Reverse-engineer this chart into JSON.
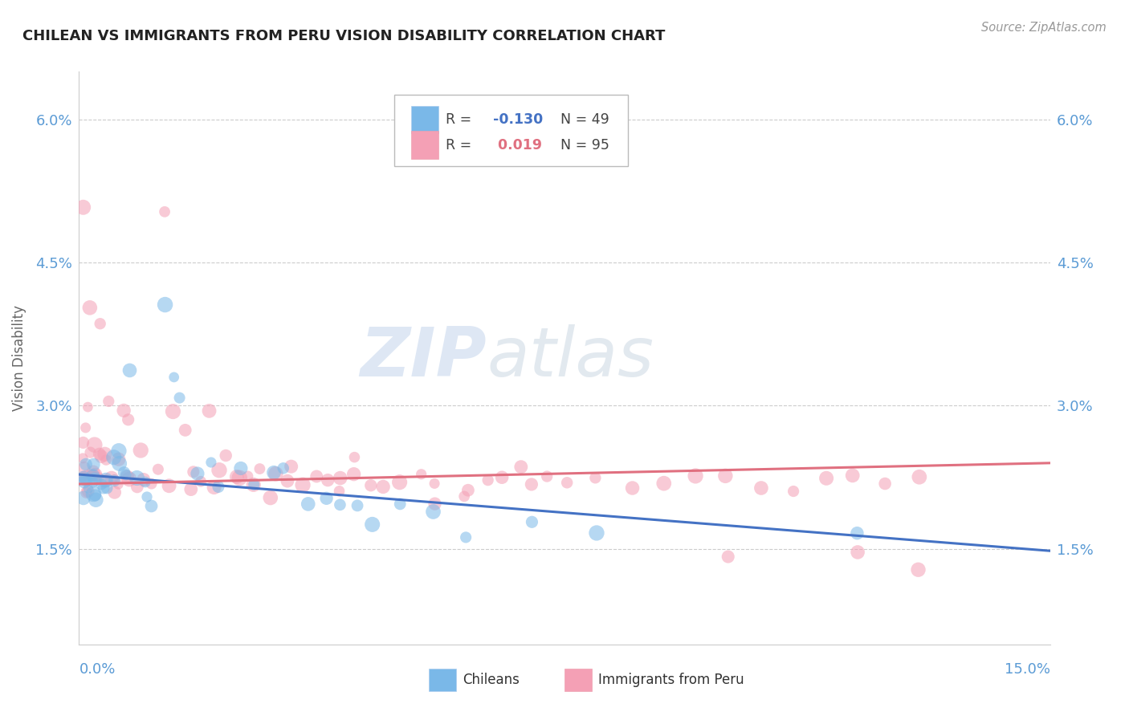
{
  "title": "CHILEAN VS IMMIGRANTS FROM PERU VISION DISABILITY CORRELATION CHART",
  "source": "Source: ZipAtlas.com",
  "ylabel": "Vision Disability",
  "xmin": 0.0,
  "xmax": 0.15,
  "ymin": 0.005,
  "ymax": 0.065,
  "yticks": [
    0.015,
    0.03,
    0.045,
    0.06
  ],
  "ytick_labels": [
    "1.5%",
    "3.0%",
    "4.5%",
    "6.0%"
  ],
  "color_chilean": "#7ab8e8",
  "color_peru": "#f4a0b5",
  "color_line_chilean": "#4472c4",
  "color_line_peru": "#e07080",
  "color_axis_label": "#5b9bd5",
  "watermark_zip": "ZIP",
  "watermark_atlas": "atlas",
  "chilean_x": [
    0.001,
    0.001,
    0.001,
    0.001,
    0.001,
    0.001,
    0.002,
    0.002,
    0.002,
    0.002,
    0.002,
    0.003,
    0.003,
    0.003,
    0.004,
    0.004,
    0.004,
    0.005,
    0.005,
    0.006,
    0.006,
    0.007,
    0.007,
    0.008,
    0.009,
    0.01,
    0.01,
    0.011,
    0.013,
    0.015,
    0.016,
    0.018,
    0.02,
    0.022,
    0.025,
    0.027,
    0.03,
    0.032,
    0.035,
    0.038,
    0.04,
    0.043,
    0.045,
    0.05,
    0.055,
    0.06,
    0.07,
    0.08,
    0.12
  ],
  "chilean_y": [
    0.022,
    0.022,
    0.021,
    0.022,
    0.023,
    0.022,
    0.023,
    0.022,
    0.021,
    0.022,
    0.023,
    0.022,
    0.021,
    0.02,
    0.022,
    0.023,
    0.021,
    0.024,
    0.022,
    0.023,
    0.025,
    0.022,
    0.023,
    0.034,
    0.022,
    0.022,
    0.021,
    0.02,
    0.04,
    0.033,
    0.03,
    0.022,
    0.024,
    0.022,
    0.023,
    0.022,
    0.023,
    0.024,
    0.02,
    0.02,
    0.02,
    0.019,
    0.017,
    0.019,
    0.018,
    0.017,
    0.017,
    0.017,
    0.016
  ],
  "peru_x": [
    0.001,
    0.001,
    0.001,
    0.001,
    0.001,
    0.001,
    0.001,
    0.001,
    0.001,
    0.001,
    0.002,
    0.002,
    0.002,
    0.002,
    0.002,
    0.003,
    0.003,
    0.003,
    0.003,
    0.004,
    0.004,
    0.004,
    0.005,
    0.005,
    0.005,
    0.006,
    0.006,
    0.007,
    0.007,
    0.008,
    0.008,
    0.009,
    0.01,
    0.01,
    0.011,
    0.012,
    0.013,
    0.014,
    0.015,
    0.016,
    0.017,
    0.018,
    0.019,
    0.02,
    0.021,
    0.022,
    0.023,
    0.024,
    0.025,
    0.026,
    0.027,
    0.028,
    0.03,
    0.032,
    0.033,
    0.035,
    0.037,
    0.038,
    0.04,
    0.042,
    0.043,
    0.045,
    0.047,
    0.05,
    0.053,
    0.055,
    0.06,
    0.063,
    0.065,
    0.068,
    0.07,
    0.072,
    0.075,
    0.08,
    0.085,
    0.09,
    0.095,
    0.1,
    0.105,
    0.11,
    0.115,
    0.12,
    0.125,
    0.13,
    0.005,
    0.001,
    0.002,
    0.003,
    0.03,
    0.04,
    0.055,
    0.06,
    0.1,
    0.12,
    0.13
  ],
  "peru_y": [
    0.022,
    0.022,
    0.023,
    0.024,
    0.021,
    0.025,
    0.026,
    0.027,
    0.023,
    0.03,
    0.022,
    0.023,
    0.024,
    0.025,
    0.026,
    0.022,
    0.023,
    0.024,
    0.025,
    0.022,
    0.024,
    0.025,
    0.022,
    0.023,
    0.03,
    0.022,
    0.025,
    0.023,
    0.03,
    0.023,
    0.028,
    0.022,
    0.023,
    0.025,
    0.022,
    0.023,
    0.05,
    0.022,
    0.03,
    0.028,
    0.022,
    0.024,
    0.023,
    0.03,
    0.022,
    0.023,
    0.024,
    0.022,
    0.022,
    0.023,
    0.022,
    0.024,
    0.022,
    0.022,
    0.023,
    0.022,
    0.022,
    0.023,
    0.022,
    0.022,
    0.024,
    0.022,
    0.022,
    0.022,
    0.023,
    0.022,
    0.022,
    0.022,
    0.022,
    0.023,
    0.022,
    0.022,
    0.022,
    0.022,
    0.022,
    0.022,
    0.022,
    0.022,
    0.022,
    0.022,
    0.022,
    0.023,
    0.022,
    0.022,
    0.02,
    0.05,
    0.041,
    0.038,
    0.02,
    0.021,
    0.019,
    0.02,
    0.015,
    0.015,
    0.013
  ],
  "chilean_line_y0": 0.0228,
  "chilean_line_y1": 0.0148,
  "peru_line_y0": 0.0218,
  "peru_line_y1": 0.024,
  "marker_size": 120
}
